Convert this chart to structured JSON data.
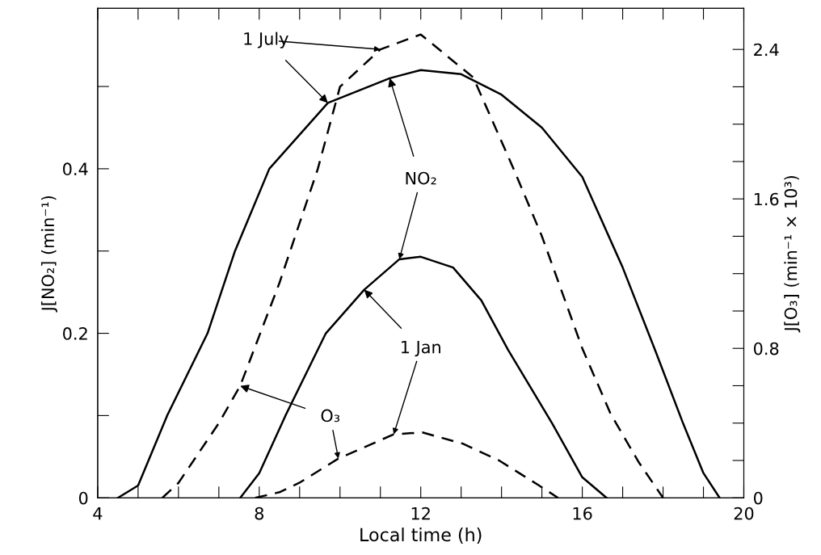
{
  "chart_data": {
    "type": "line",
    "xlabel": "Local time (h)",
    "ylabel": "J[NO₂] (min⁻¹)",
    "y2label": "J[O₃] (min⁻¹ × 10³)",
    "xlim": [
      4,
      20
    ],
    "xticks": [
      4,
      {
        "value": 5,
        "label": null
      },
      {
        "value": 6,
        "label": null
      },
      {
        "value": 7,
        "label": null
      },
      8,
      {
        "value": 9,
        "label": null
      },
      {
        "value": 10,
        "label": null
      },
      {
        "value": 11,
        "label": null
      },
      12,
      {
        "value": 13,
        "label": null
      },
      {
        "value": 14,
        "label": null
      },
      {
        "value": 15,
        "label": null
      },
      16,
      {
        "value": 17,
        "label": null
      },
      {
        "value": 18,
        "label": null
      },
      {
        "value": 19,
        "label": null
      },
      20
    ],
    "ylim": [
      0,
      0.595
    ],
    "yticks": [
      0,
      {
        "value": 0.1,
        "label": null
      },
      0.2,
      {
        "value": 0.3,
        "label": null
      },
      0.4,
      {
        "value": 0.5,
        "label": null
      }
    ],
    "y2lim": [
      0,
      2.62
    ],
    "y2ticks": [
      0,
      {
        "value": 0.2,
        "label": null
      },
      {
        "value": 0.4,
        "label": null
      },
      {
        "value": 0.6,
        "label": null
      },
      0.8,
      {
        "value": 1.0,
        "label": null
      },
      {
        "value": 1.2,
        "label": null
      },
      {
        "value": 1.4,
        "label": null
      },
      1.6,
      {
        "value": 1.8,
        "label": null
      },
      {
        "value": 2.0,
        "label": null
      },
      {
        "value": 2.2,
        "label": null
      },
      2.4
    ],
    "grid": false,
    "legend": false,
    "series": [
      {
        "color": "#000000",
        "line_style": "solid",
        "x": [
          4.5,
          5,
          5.72,
          6.72,
          7.4,
          8.25,
          9.7,
          11.23,
          12,
          13,
          14,
          15,
          16,
          17,
          17.8,
          18.5,
          19,
          19.4
        ],
        "values": [
          0,
          0.015,
          0.1,
          0.2,
          0.3,
          0.4,
          0.48,
          0.51,
          0.52,
          0.515,
          0.49,
          0.45,
          0.39,
          0.28,
          0.18,
          0.09,
          0.03,
          0
        ]
      },
      {
        "color": "#000000",
        "line_style": "solid",
        "x": [
          7.53,
          8,
          8.65,
          9.65,
          10.6,
          11.47,
          12,
          12.8,
          13.5,
          14.16,
          15.26,
          16,
          16.6
        ],
        "values": [
          0,
          0.03,
          0.1,
          0.2,
          0.253,
          0.29,
          0.293,
          0.28,
          0.24,
          0.18,
          0.09,
          0.025,
          0
        ]
      },
      {
        "color": "#000000",
        "line_style": "dashed",
        "axis": "y2",
        "x": [
          5.6,
          6,
          7,
          7.53,
          8.5,
          9.45,
          10,
          11,
          12,
          13.3,
          14.3,
          15,
          16,
          16.7,
          17.4,
          18
        ],
        "values": [
          0,
          0.08,
          0.4,
          0.6,
          1.15,
          1.76,
          2.2,
          2.4,
          2.48,
          2.25,
          1.76,
          1.4,
          0.8,
          0.45,
          0.19,
          0
        ]
      },
      {
        "color": "#000000",
        "line_style": "dashed",
        "axis": "y2",
        "x": [
          7.9,
          8.5,
          8.99,
          9.96,
          11.33,
          12.04,
          13.04,
          13.94,
          14.9,
          15.4
        ],
        "values": [
          0,
          0.03,
          0.08,
          0.21,
          0.34,
          0.35,
          0.29,
          0.2,
          0.07,
          0
        ]
      }
    ],
    "annotations": [
      {
        "text": "1 July",
        "x": 9.7,
        "y": 0.48
      },
      {
        "text": "NO₂",
        "x": 11.23,
        "y": 0.51
      },
      {
        "text": "1 Jan",
        "x": 10.6,
        "y": 0.253
      },
      {
        "text": "O₃",
        "x": 7.53,
        "y": 0.136
      }
    ]
  }
}
